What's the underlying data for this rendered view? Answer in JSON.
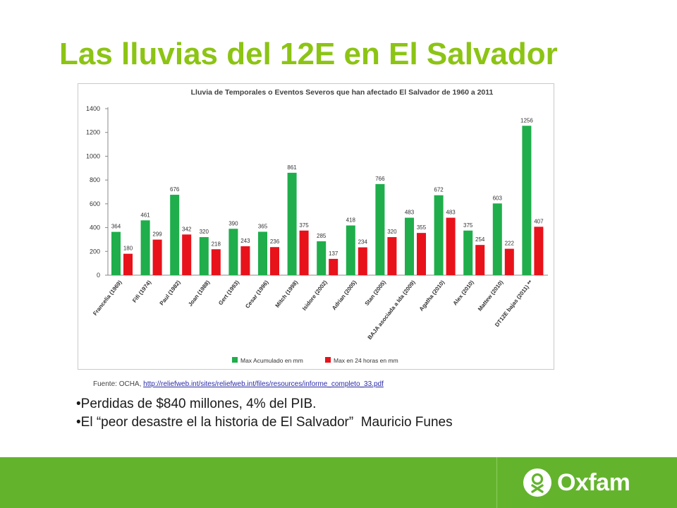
{
  "title": "Las lluvias del 12E en El Salvador",
  "source": {
    "prefix": "Fuente:  OCHA, ",
    "link": "http://reliefweb.int/sites/reliefweb.int/files/resources/informe_completo_33.pdf"
  },
  "bullets": [
    "•Perdidas de $840 millones, 4% del PIB.",
    "•El “peor desastre el la historia de El Salvador”  Mauricio Funes"
  ],
  "footer": {
    "logo_text": "Oxfam"
  },
  "colors": {
    "title": "#8cc414",
    "green_series": "#1fae4b",
    "red_series": "#e8121b",
    "footer": "#63b42c"
  },
  "chart_data": {
    "type": "bar",
    "title": "Lluvia de Temporales o Eventos Severos que han afectado El Salvador de 1960 a 2011",
    "categories": [
      "Francelia (1969)",
      "Fifi (1974)",
      "Paul (1982)",
      "Joan (1988)",
      "Gert (1993)",
      "Cesar (1996)",
      "Mitch (1998)",
      "Isidore (2002)",
      "Adrian (2005)",
      "Stan (2005)",
      "BAJA asociada a Ida (2009)",
      "Agatha (2010)",
      "Alex (2010)",
      "Mattew (2010)",
      "DT12E bajas (2011) **"
    ],
    "series": [
      {
        "name": "Max Acumulado en mm",
        "values": [
          364,
          461,
          676,
          320,
          390,
          365,
          861,
          285,
          418,
          766,
          483,
          672,
          375,
          603,
          1256
        ]
      },
      {
        "name": "Max en 24 horas en mm",
        "values": [
          180,
          299,
          342,
          218,
          243,
          236,
          375,
          137,
          234,
          320,
          355,
          483,
          254,
          222,
          407
        ]
      }
    ],
    "ylim": [
      0,
      1400
    ],
    "yticks": [
      0,
      200,
      400,
      600,
      800,
      1000,
      1200,
      1400
    ],
    "legend": "bottom",
    "grid": false
  }
}
